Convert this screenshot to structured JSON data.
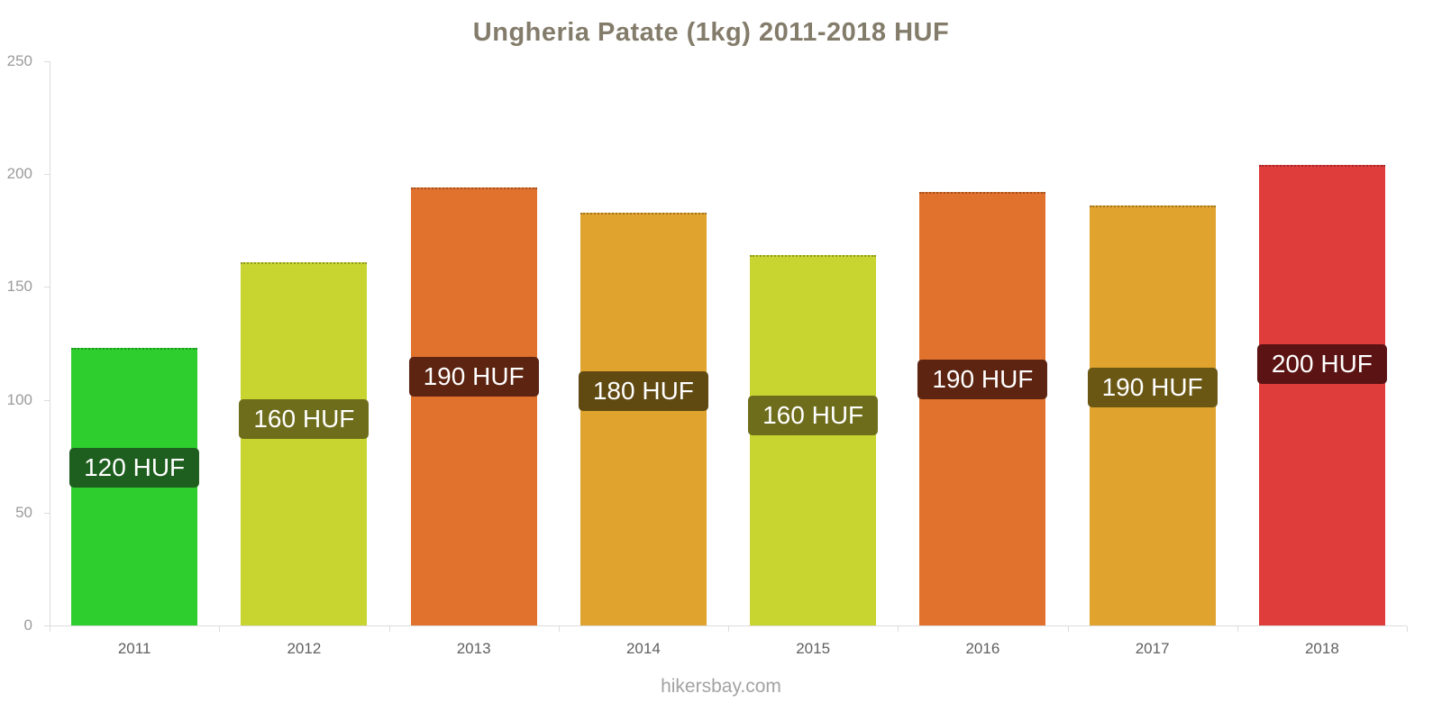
{
  "chart_data": {
    "type": "bar",
    "title": "Ungheria Patate (1kg) 2011-2018 HUF",
    "categories": [
      "2011",
      "2012",
      "2013",
      "2014",
      "2015",
      "2016",
      "2017",
      "2018"
    ],
    "values": [
      123,
      161,
      194,
      183,
      164,
      192,
      186,
      204
    ],
    "bar_label_texts": [
      "120 HUF",
      "160 HUF",
      "190 HUF",
      "180 HUF",
      "160 HUF",
      "190 HUF",
      "190 HUF",
      "200 HUF"
    ],
    "bar_colors": [
      "#2fce2f",
      "#c8d42f",
      "#e0722d",
      "#dfa32e",
      "#c8d42f",
      "#e0722d",
      "#dfa32e",
      "#df3c3c"
    ],
    "label_bg_colors": [
      "#1e5e1e",
      "#6e6d1c",
      "#5c2411",
      "#604a12",
      "#6e6d1c",
      "#5c2411",
      "#6b5714",
      "#5c1313"
    ],
    "xlabel": "",
    "ylabel": "",
    "ylim": [
      0,
      250
    ],
    "yticks": [
      0,
      50,
      100,
      150,
      200,
      250
    ],
    "grid": "off",
    "legend": "none",
    "footer": "hikersbay.com"
  }
}
